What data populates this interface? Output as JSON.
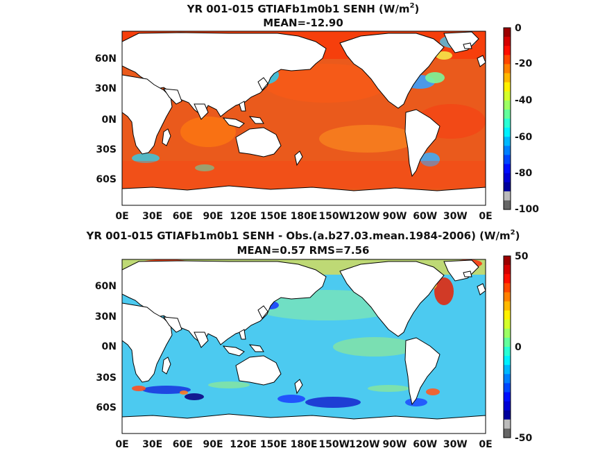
{
  "chart_data": [
    {
      "type": "heatmap",
      "title": "YR 001-015 GTIAFb1m0b1  SENH (W/m",
      "title_sup": "2",
      "title_end": ")",
      "subtitle": "MEAN=-12.90",
      "x_tick_labels": [
        "0E",
        "30E",
        "60E",
        "90E",
        "120E",
        "150E",
        "180E",
        "150W",
        "120W",
        "90W",
        "60W",
        "30W",
        "0E"
      ],
      "y_tick_labels": [
        "60N",
        "30N",
        "0N",
        "30S",
        "60S"
      ],
      "y_tick_values": [
        60,
        30,
        0,
        -30,
        -60
      ],
      "lat_range": [
        -80,
        85
      ],
      "colorbar": {
        "ticks": [
          0,
          -20,
          -40,
          -60,
          -80,
          -100
        ],
        "tick_labels": [
          "0",
          "-20",
          "-40",
          "-60",
          "-80",
          "-100"
        ],
        "range": [
          -100,
          0
        ],
        "colormap": "jet"
      }
    },
    {
      "type": "heatmap",
      "title": "YR 001-015 GTIAFb1m0b1 SENH - Obs.(a.b27.03.mean.1984-2006) (W/m",
      "title_sup": "2",
      "title_end": ")",
      "subtitle": "MEAN=0.57 RMS=7.56",
      "x_tick_labels": [
        "0E",
        "30E",
        "60E",
        "90E",
        "120E",
        "150E",
        "180E",
        "150W",
        "120W",
        "90W",
        "60W",
        "30W",
        "0E"
      ],
      "y_tick_labels": [
        "60N",
        "30N",
        "0N",
        "30S",
        "60S"
      ],
      "y_tick_values": [
        60,
        30,
        0,
        -30,
        -60
      ],
      "lat_range": [
        -80,
        85
      ],
      "colorbar": {
        "ticks": [
          50,
          0,
          -50
        ],
        "tick_labels": [
          "50",
          "0",
          "-50"
        ],
        "range": [
          -50,
          50
        ],
        "colormap": "jet"
      }
    }
  ],
  "colors": {
    "land": "#ffffff",
    "coast": "#000000",
    "frame": "#000000"
  }
}
